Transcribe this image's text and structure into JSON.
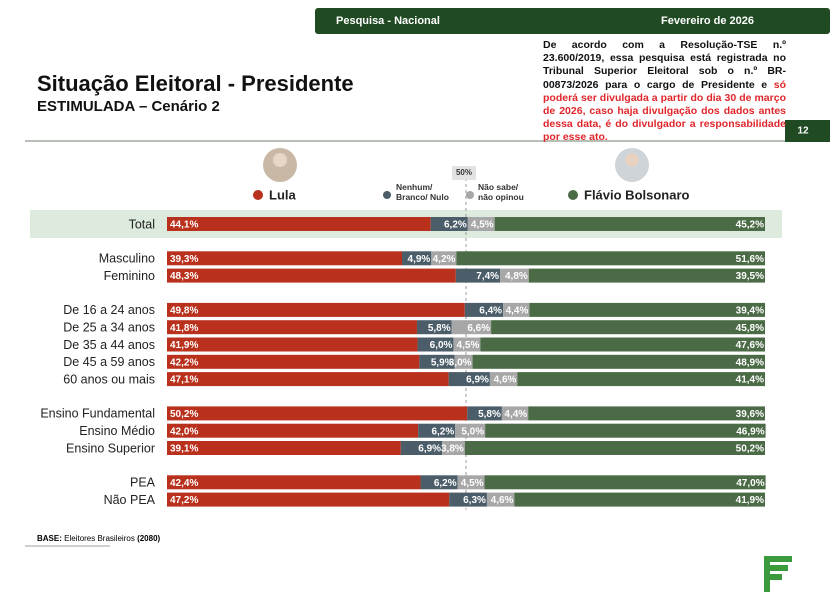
{
  "header": {
    "survey": "Pesquisa - Nacional",
    "date": "Fevereiro de 2026",
    "page": "12"
  },
  "notice": {
    "text": "De acordo com a Resolução-TSE n.º 23.600/2019, essa pesquisa está registrada no Tribunal Superior Eleitoral sob o n.º BR-00873/2026 para o cargo de Presidente e",
    "highlight": "só poderá ser divulgada a partir do dia 30 de março de 2026, caso haja divulgação dos dados antes dessa data, é do divulgador a responsabilidade por esse ato."
  },
  "footer": {
    "base_label": "BASE:",
    "base_text": "Eleitores Brasileiros",
    "base_n": "(2080)"
  },
  "chart_data": {
    "type": "bar",
    "title": "Situação Eleitoral - Presidente",
    "subtitle": "ESTIMULADA – Cenário 2",
    "categories": [
      "Total",
      "Masculino",
      "Feminino",
      "De 16 a 24 anos",
      "De 25 a 34 anos",
      "De 35 a 44 anos",
      "De 45 a 59 anos",
      "60 anos ou mais",
      "Ensino Fundamental",
      "Ensino Médio",
      "Ensino Superior",
      "PEA",
      "Não PEA"
    ],
    "xlim": [
      0,
      100
    ],
    "reference": {
      "value": 50,
      "label": "50%"
    },
    "series": [
      {
        "name": "Lula",
        "color": "#b9311c",
        "values": [
          44.1,
          39.3,
          48.3,
          49.8,
          41.8,
          41.9,
          42.2,
          47.1,
          50.2,
          42.0,
          39.1,
          42.4,
          47.2
        ],
        "value_labels": [
          "44,1%",
          "39,3%",
          "48,3%",
          "49,8%",
          "41,8%",
          "41,9%",
          "42,2%",
          "47,1%",
          "50,2%",
          "42,0%",
          "39,1%",
          "42,4%",
          "47,2%"
        ]
      },
      {
        "name": "Nenhum/ Branco/ Nulo",
        "color": "#4a5d69",
        "values": [
          6.2,
          4.9,
          7.4,
          6.4,
          5.8,
          6.0,
          5.9,
          6.9,
          5.8,
          6.2,
          6.9,
          6.2,
          6.3
        ],
        "value_labels": [
          "6,2%",
          "4,9%",
          "7,4%",
          "6,4%",
          "5,8%",
          "6,0%",
          "5,9%",
          "6,9%",
          "5,8%",
          "6,2%",
          "6,9%",
          "6,2%",
          "6,3%"
        ]
      },
      {
        "name": "Não sabe/ não opinou",
        "color": "#a7a7a7",
        "values": [
          4.5,
          4.2,
          4.8,
          4.4,
          6.6,
          4.5,
          3.0,
          4.6,
          4.4,
          5.0,
          3.8,
          4.5,
          4.6
        ],
        "value_labels": [
          "4,5%",
          "4,2%",
          "4,8%",
          "4,4%",
          "6,6%",
          "4,5%",
          "3,0%",
          "4,6%",
          "4,4%",
          "5,0%",
          "3,8%",
          "4,5%",
          "4,6%"
        ]
      },
      {
        "name": "Flávio Bolsonaro",
        "color": "#4b6b46",
        "values": [
          45.2,
          51.6,
          39.5,
          39.4,
          45.8,
          47.6,
          48.9,
          41.4,
          39.6,
          46.9,
          50.2,
          47.0,
          41.9
        ],
        "value_labels": [
          "45,2%",
          "51,6%",
          "39,5%",
          "39,4%",
          "45,8%",
          "47,6%",
          "48,9%",
          "41,4%",
          "39,6%",
          "46,9%",
          "50,2%",
          "47,0%",
          "41,9%"
        ]
      }
    ]
  }
}
